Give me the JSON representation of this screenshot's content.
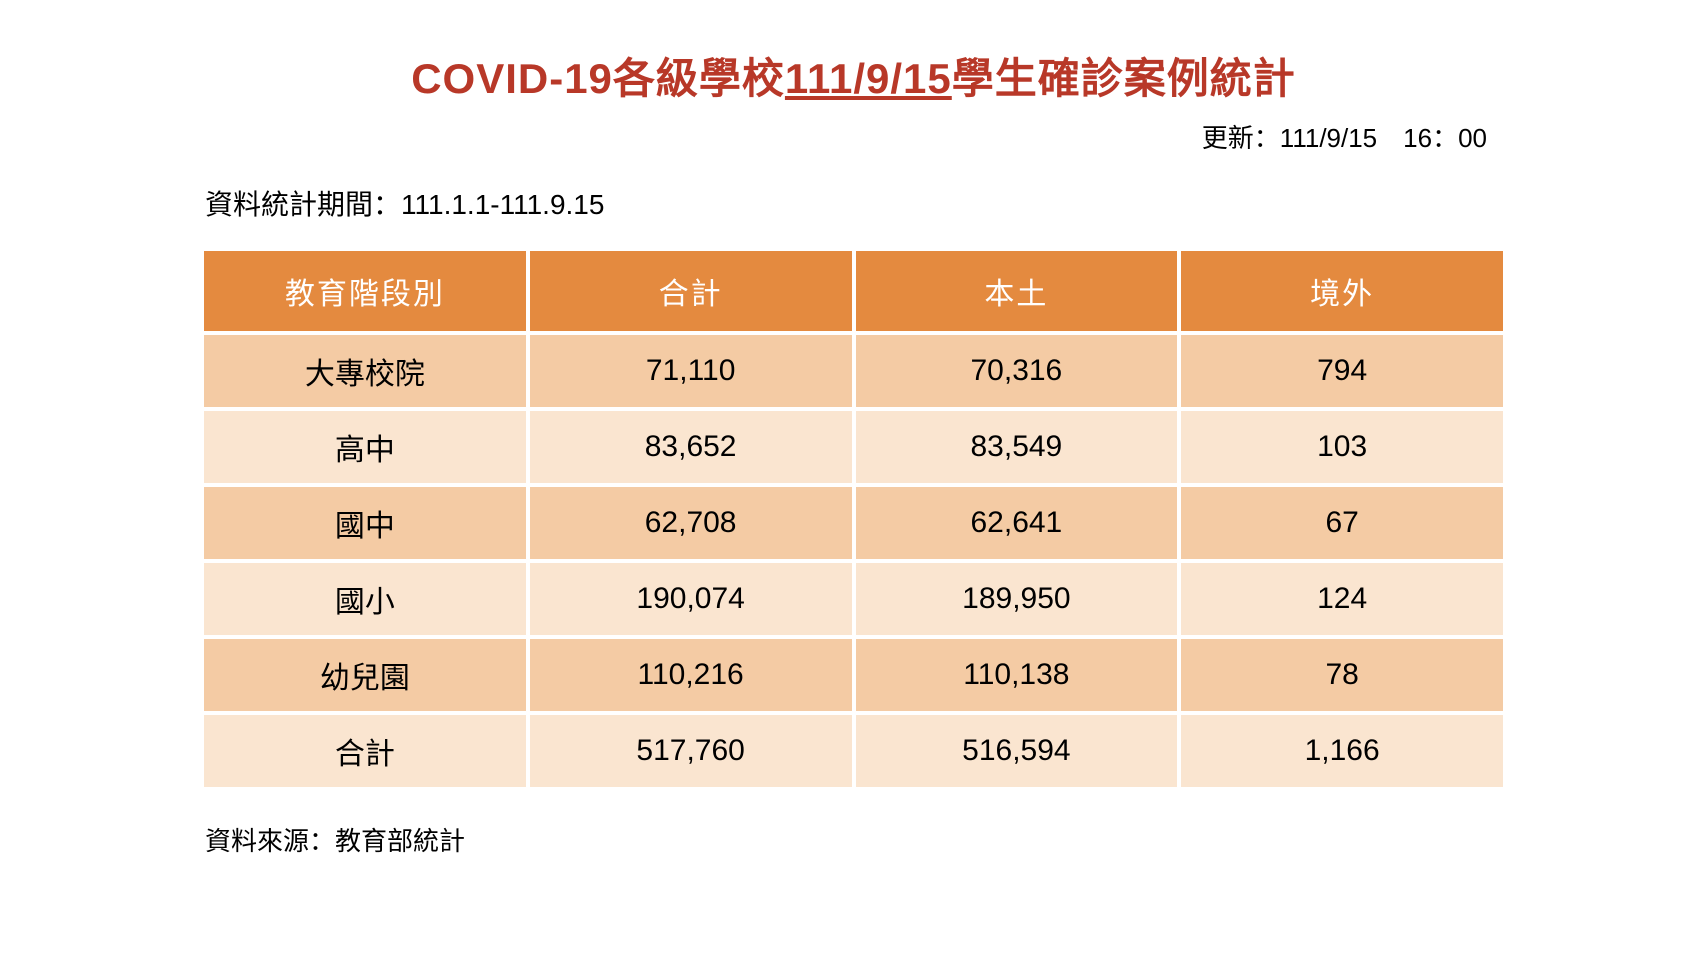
{
  "title": {
    "prefix": "COVID-19各級學校",
    "date": "111/9/15",
    "suffix": "學生確診案例統計",
    "color": "#b83828",
    "fontsize": 42
  },
  "update": {
    "label": "更新：",
    "value": "111/9/15　16：00",
    "fontsize": 26
  },
  "period": {
    "label": "資料統計期間：",
    "value": "111.1.1-111.9.15",
    "fontsize": 28
  },
  "table": {
    "header_bg": "#e48a3f",
    "header_color": "#ffffff",
    "row_dark_bg": "#f4cba4",
    "row_light_bg": "#fae5d0",
    "cell_color": "#000000",
    "header_fontsize": 30,
    "cell_fontsize": 30,
    "columns": [
      "教育階段別",
      "合計",
      "本土",
      "境外"
    ],
    "rows": [
      {
        "label": "大專校院",
        "total": "71,110",
        "local": "70,316",
        "abroad": "794"
      },
      {
        "label": "高中",
        "total": "83,652",
        "local": "83,549",
        "abroad": "103"
      },
      {
        "label": "國中",
        "total": "62,708",
        "local": "62,641",
        "abroad": "67"
      },
      {
        "label": "國小",
        "total": "190,074",
        "local": "189,950",
        "abroad": "124"
      },
      {
        "label": "幼兒園",
        "total": "110,216",
        "local": "110,138",
        "abroad": "78"
      },
      {
        "label": "合計",
        "total": "517,760",
        "local": "516,594",
        "abroad": "1,166"
      }
    ]
  },
  "source": {
    "label": "資料來源：",
    "value": "教育部統計",
    "fontsize": 26
  }
}
